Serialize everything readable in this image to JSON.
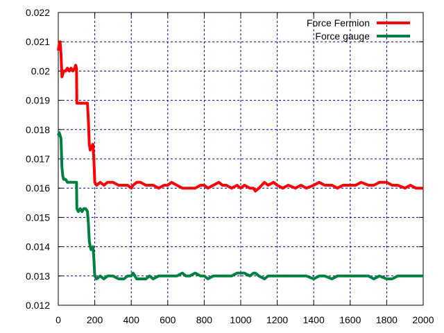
{
  "chart_data": {
    "type": "line",
    "title": "",
    "xlabel": "",
    "ylabel": "",
    "xlim": [
      0,
      2000
    ],
    "ylim": [
      0.012,
      0.022
    ],
    "x_ticks": [
      "0",
      "200",
      "400",
      "600",
      "800",
      "1000",
      "1200",
      "1400",
      "1600",
      "1800",
      "2000"
    ],
    "y_ticks": [
      "0.012",
      "0.013",
      "0.014",
      "0.015",
      "0.016",
      "0.017",
      "0.018",
      "0.019",
      "0.02",
      "0.021",
      "0.022"
    ],
    "grid": true,
    "legend_position": "top-right",
    "series": [
      {
        "name": "Force Fermion",
        "color": "#ff0000",
        "x": [
          0,
          5,
          10,
          15,
          20,
          25,
          30,
          35,
          40,
          50,
          60,
          70,
          80,
          90,
          95,
          100,
          102,
          110,
          120,
          130,
          140,
          150,
          160,
          165,
          170,
          175,
          180,
          190,
          195,
          200,
          210,
          230,
          250,
          270,
          300,
          330,
          360,
          380,
          400,
          410,
          430,
          450,
          480,
          500,
          520,
          550,
          580,
          600,
          620,
          650,
          680,
          700,
          720,
          750,
          780,
          800,
          820,
          850,
          880,
          900,
          920,
          950,
          980,
          1000,
          1020,
          1050,
          1070,
          1080,
          1100,
          1130,
          1150,
          1180,
          1200,
          1230,
          1260,
          1300,
          1330,
          1360,
          1400,
          1430,
          1460,
          1500,
          1530,
          1560,
          1600,
          1630,
          1660,
          1700,
          1730,
          1760,
          1800,
          1830,
          1860,
          1900,
          1930,
          1960,
          2000
        ],
        "y": [
          0.0207,
          0.0209,
          0.021,
          0.0206,
          0.0198,
          0.0199,
          0.02,
          0.02,
          0.02,
          0.0201,
          0.02,
          0.0201,
          0.02,
          0.0201,
          0.0202,
          0.0201,
          0.0189,
          0.0189,
          0.0189,
          0.0189,
          0.0189,
          0.0189,
          0.0189,
          0.0183,
          0.0175,
          0.0173,
          0.0174,
          0.0175,
          0.017,
          0.0162,
          0.0161,
          0.0162,
          0.0161,
          0.0162,
          0.0162,
          0.0161,
          0.0161,
          0.0161,
          0.016,
          0.0161,
          0.0162,
          0.0162,
          0.0161,
          0.0161,
          0.0161,
          0.016,
          0.0161,
          0.0161,
          0.0162,
          0.0161,
          0.016,
          0.016,
          0.016,
          0.016,
          0.0161,
          0.0161,
          0.016,
          0.0161,
          0.0162,
          0.0161,
          0.0161,
          0.016,
          0.0161,
          0.016,
          0.0161,
          0.016,
          0.016,
          0.0159,
          0.016,
          0.0162,
          0.0161,
          0.0162,
          0.0161,
          0.016,
          0.0161,
          0.016,
          0.0161,
          0.016,
          0.0161,
          0.0162,
          0.0161,
          0.0161,
          0.016,
          0.0161,
          0.0161,
          0.0161,
          0.0162,
          0.0161,
          0.0161,
          0.0162,
          0.0162,
          0.0161,
          0.0161,
          0.016,
          0.0161,
          0.016,
          0.016
        ]
      },
      {
        "name": "Force gauge",
        "color": "#008040",
        "x": [
          0,
          5,
          10,
          15,
          20,
          25,
          30,
          35,
          40,
          50,
          60,
          70,
          80,
          90,
          95,
          100,
          102,
          110,
          120,
          130,
          140,
          150,
          160,
          165,
          170,
          175,
          180,
          190,
          195,
          200,
          210,
          230,
          250,
          270,
          300,
          330,
          360,
          380,
          400,
          410,
          430,
          450,
          480,
          500,
          520,
          550,
          580,
          600,
          620,
          650,
          680,
          700,
          720,
          750,
          780,
          800,
          820,
          850,
          880,
          900,
          920,
          950,
          980,
          1000,
          1020,
          1050,
          1070,
          1080,
          1100,
          1130,
          1150,
          1180,
          1200,
          1230,
          1260,
          1300,
          1330,
          1360,
          1400,
          1430,
          1460,
          1500,
          1530,
          1560,
          1600,
          1630,
          1660,
          1700,
          1730,
          1760,
          1800,
          1830,
          1860,
          1900,
          1930,
          1960,
          2000
        ],
        "y": [
          0.0178,
          0.0179,
          0.0178,
          0.0177,
          0.0167,
          0.0164,
          0.0163,
          0.0163,
          0.0163,
          0.0162,
          0.0162,
          0.0162,
          0.0162,
          0.0162,
          0.0162,
          0.0162,
          0.0153,
          0.0152,
          0.0153,
          0.0152,
          0.0153,
          0.0153,
          0.0152,
          0.0148,
          0.0142,
          0.014,
          0.0139,
          0.014,
          0.0136,
          0.013,
          0.0129,
          0.013,
          0.0129,
          0.013,
          0.013,
          0.0129,
          0.0129,
          0.013,
          0.013,
          0.0131,
          0.0129,
          0.0129,
          0.0129,
          0.013,
          0.0129,
          0.013,
          0.013,
          0.013,
          0.013,
          0.013,
          0.0131,
          0.013,
          0.013,
          0.0131,
          0.013,
          0.013,
          0.0129,
          0.013,
          0.013,
          0.013,
          0.013,
          0.013,
          0.0131,
          0.0131,
          0.0131,
          0.013,
          0.0131,
          0.0131,
          0.013,
          0.0129,
          0.013,
          0.013,
          0.013,
          0.013,
          0.013,
          0.013,
          0.013,
          0.013,
          0.0129,
          0.013,
          0.013,
          0.0129,
          0.013,
          0.013,
          0.013,
          0.013,
          0.013,
          0.013,
          0.0129,
          0.013,
          0.0129,
          0.0129,
          0.013,
          0.013,
          0.013,
          0.013,
          0.013
        ]
      }
    ]
  }
}
